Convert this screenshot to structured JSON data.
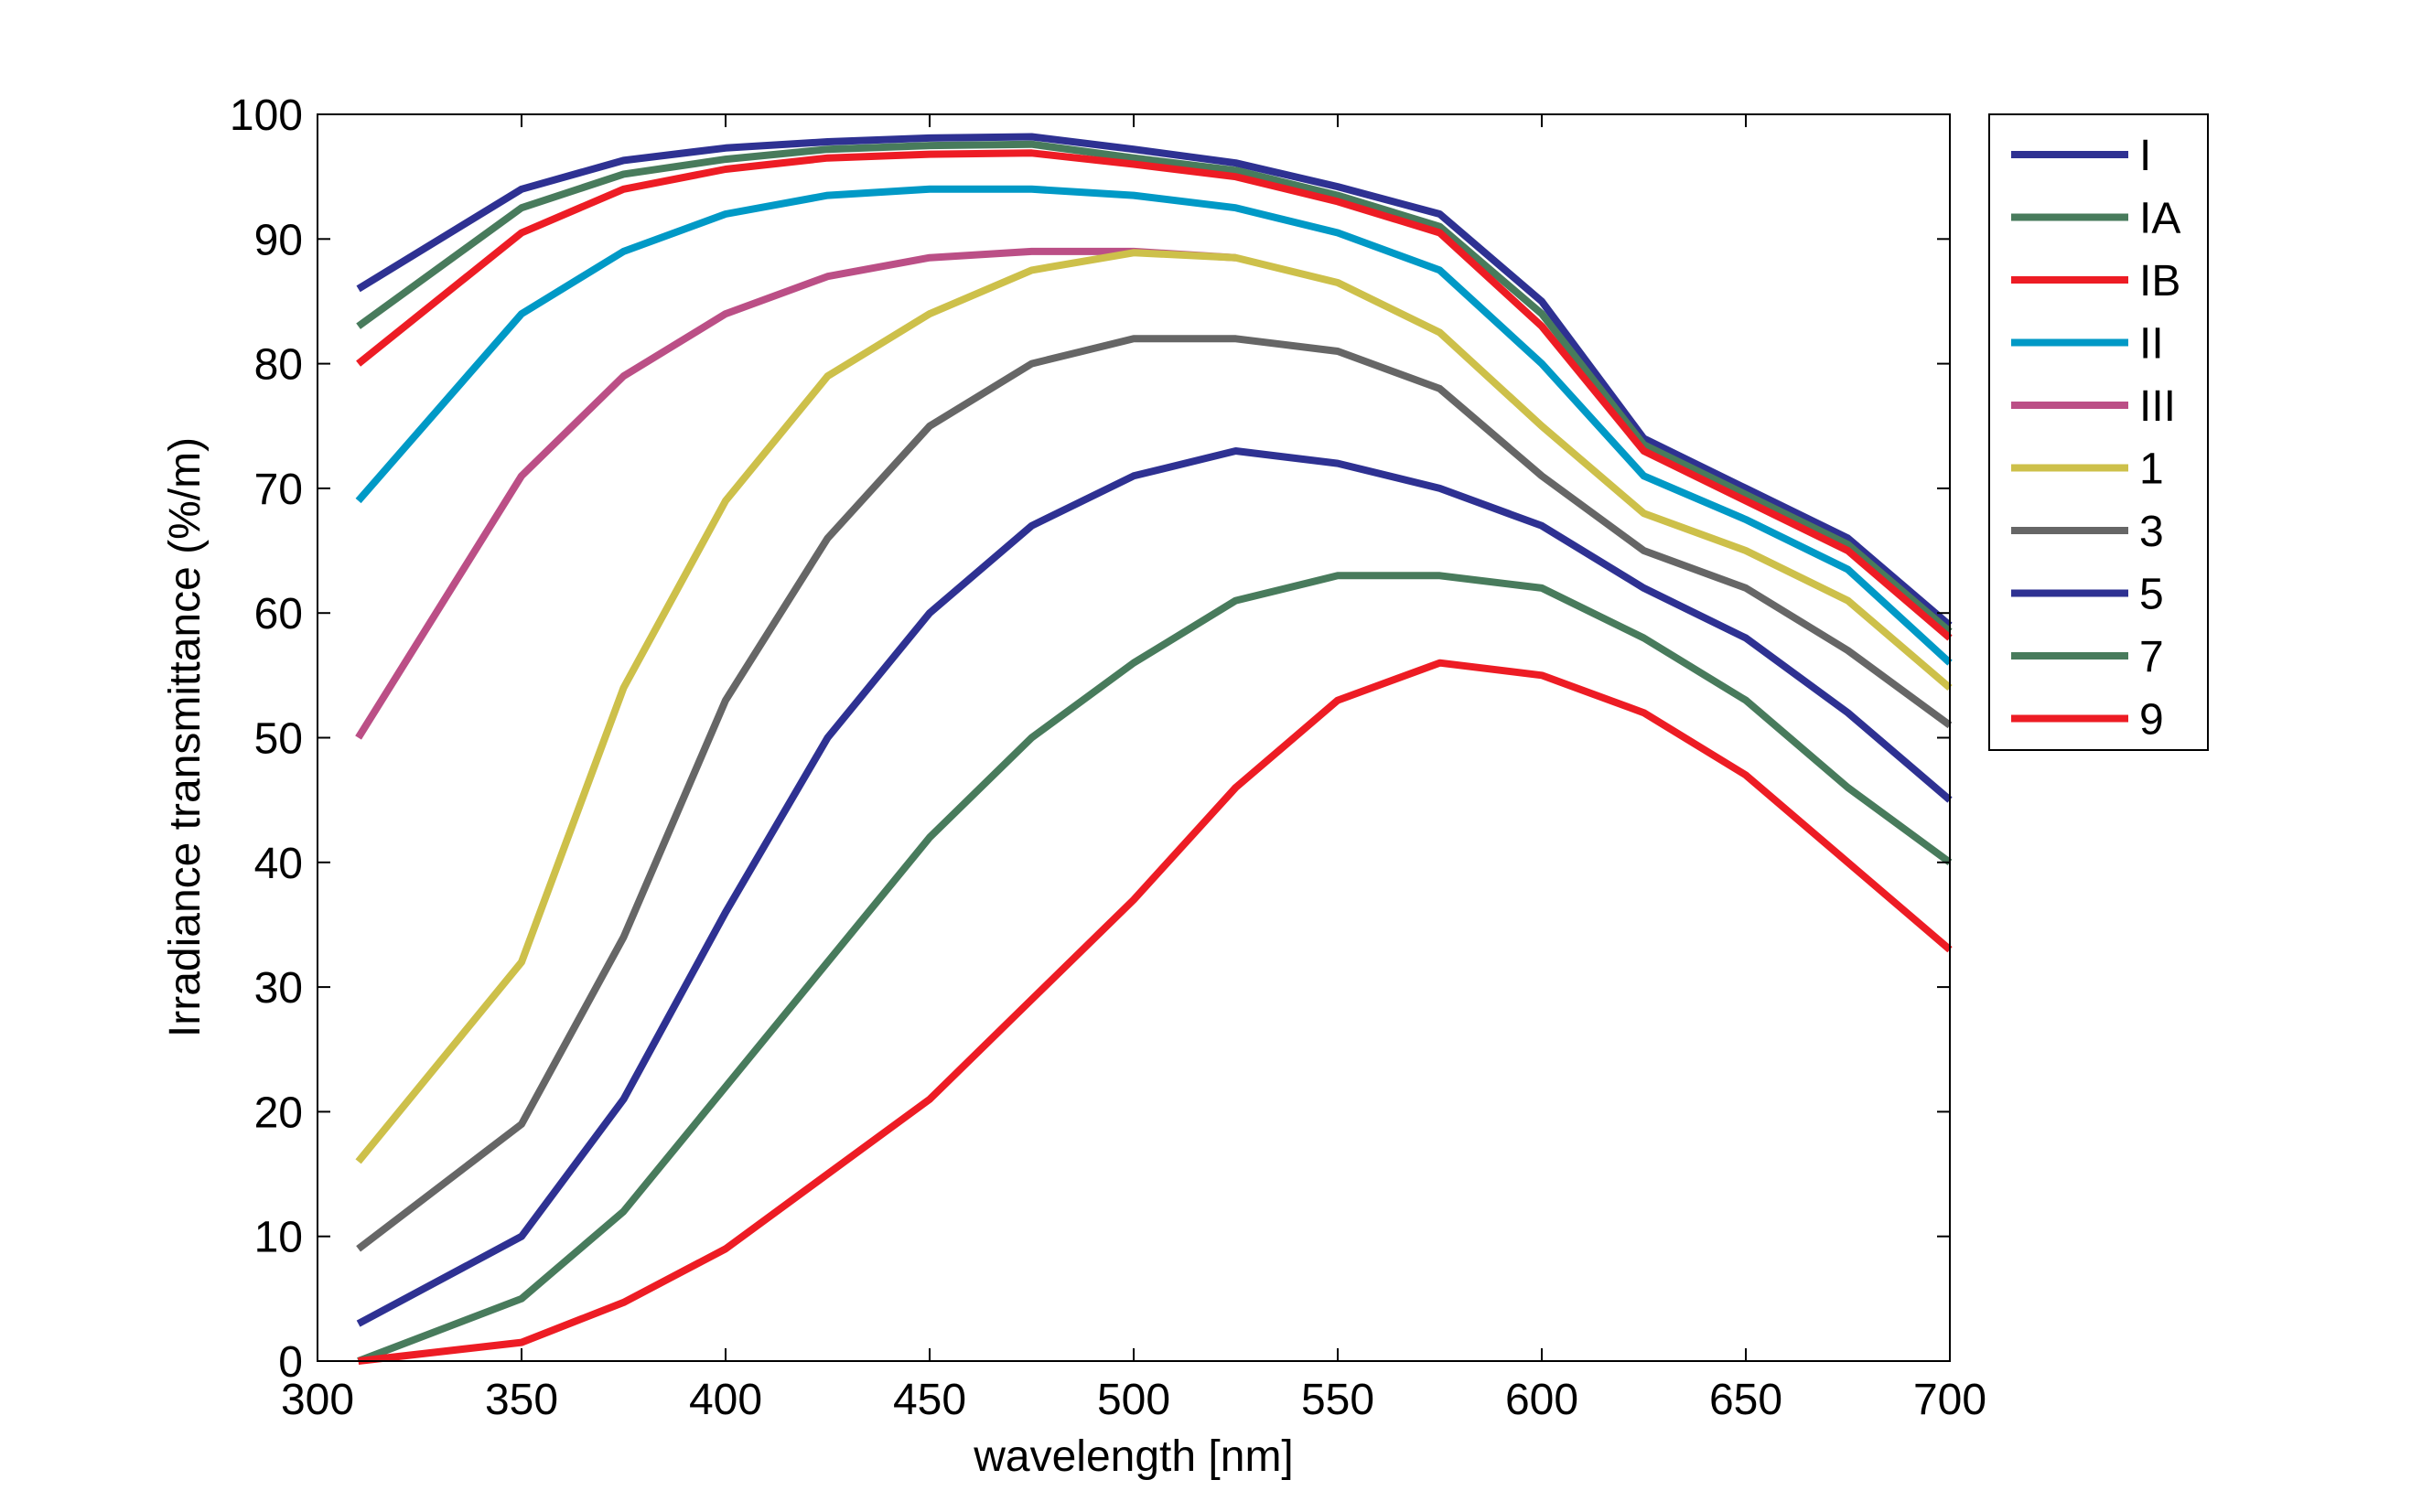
{
  "chart_data": {
    "type": "line",
    "title": "",
    "xlabel": "wavelength [nm]",
    "ylabel": "Irradiance transmittance (%/m)",
    "xlim": [
      300,
      700
    ],
    "ylim": [
      0,
      100
    ],
    "xticks": [
      300,
      350,
      400,
      450,
      500,
      550,
      600,
      650,
      700
    ],
    "yticks": [
      0,
      10,
      20,
      30,
      40,
      50,
      60,
      70,
      80,
      90,
      100
    ],
    "grid": false,
    "legend_position": "outside-top-right",
    "x": [
      310,
      350,
      375,
      400,
      425,
      450,
      475,
      500,
      525,
      550,
      575,
      600,
      625,
      650,
      675,
      700
    ],
    "series": [
      {
        "name": "I",
        "color": "#2e3192",
        "values": [
          86,
          94,
          96.3,
          97.3,
          97.8,
          98.1,
          98.2,
          97.2,
          96.1,
          94.2,
          92,
          85,
          74,
          70,
          66,
          59
        ]
      },
      {
        "name": "IA",
        "color": "#487b5c",
        "values": [
          83,
          92.5,
          95.2,
          96.4,
          97.2,
          97.5,
          97.6,
          96.5,
          95.5,
          93.5,
          91,
          84,
          73.5,
          69.5,
          65.5,
          58.5
        ]
      },
      {
        "name": "IB",
        "color": "#ed1c24",
        "values": [
          80,
          90.5,
          94,
          95.6,
          96.5,
          96.8,
          96.9,
          96,
          95,
          93,
          90.5,
          83,
          73,
          69,
          65,
          58
        ]
      },
      {
        "name": "II",
        "color": "#0099c6",
        "values": [
          69,
          84,
          89,
          92,
          93.5,
          94,
          94,
          93.5,
          92.5,
          90.5,
          87.5,
          80,
          71,
          67.5,
          63.5,
          56
        ]
      },
      {
        "name": "III",
        "color": "#bb4f86",
        "values": [
          50,
          71,
          79,
          84,
          87,
          88.5,
          89,
          89,
          88.5,
          null,
          null,
          null,
          null,
          null,
          null,
          null
        ]
      },
      {
        "name": "1",
        "color": "#cdc04a",
        "values": [
          16,
          32,
          54,
          69,
          79,
          84,
          87.5,
          88.9,
          88.5,
          86.5,
          82.5,
          75,
          68,
          65,
          61,
          54
        ]
      },
      {
        "name": "3",
        "color": "#666666",
        "values": [
          9,
          19,
          34,
          53,
          66,
          75,
          80,
          82,
          82,
          81,
          78,
          71,
          65,
          62,
          57,
          51
        ]
      },
      {
        "name": "5",
        "color": "#2e3192",
        "values": [
          3,
          10,
          21,
          36,
          50,
          60,
          67,
          71,
          73,
          72,
          70,
          67,
          62,
          58,
          52,
          45
        ]
      },
      {
        "name": "7",
        "color": "#487b5c",
        "values": [
          0,
          5,
          12,
          22,
          32,
          42,
          50,
          56,
          61,
          63,
          63,
          62,
          58,
          53,
          46,
          40
        ]
      },
      {
        "name": "9",
        "color": "#ed1c24",
        "values": [
          0,
          1.5,
          4.7,
          9,
          15,
          21,
          29,
          37,
          46,
          53,
          56,
          55,
          52,
          47,
          40,
          33
        ]
      }
    ]
  }
}
